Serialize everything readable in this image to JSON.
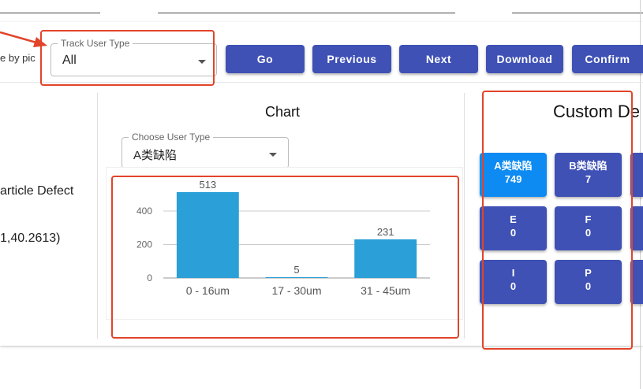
{
  "toolbar": {
    "by_pic_label": "e by pic",
    "track_user_type": {
      "legend": "Track User Type",
      "value": "All"
    },
    "buttons": [
      "Go",
      "Previous",
      "Next",
      "Download",
      "Confirm"
    ]
  },
  "left_panel": {
    "defect_label": "article Defect",
    "coords": "1,40.2613)"
  },
  "chart_panel": {
    "title": "Chart",
    "choose_user_type": {
      "legend": "Choose User Type",
      "value": "A类缺陷"
    }
  },
  "chart_data": {
    "type": "bar",
    "categories": [
      "0 - 16um",
      "17 - 30um",
      "31 - 45um"
    ],
    "values": [
      513,
      5,
      231
    ],
    "ylim": [
      0,
      513
    ],
    "yticks": [
      0,
      200,
      400
    ],
    "grid": true,
    "bar_color": "#2a9fd8"
  },
  "custom_panel": {
    "title": "Custom De",
    "tiles": [
      {
        "label": "A类缺陷",
        "value": "749",
        "color": "#0d8bf2"
      },
      {
        "label": "B类缺陷",
        "value": "7",
        "color": "#3f51b5"
      },
      {
        "label": "E",
        "value": "0",
        "color": "#3f51b5"
      },
      {
        "label": "F",
        "value": "0",
        "color": "#3f51b5"
      },
      {
        "label": "I",
        "value": "0",
        "color": "#3f51b5"
      },
      {
        "label": "P",
        "value": "0",
        "color": "#3f51b5"
      }
    ]
  },
  "colors": {
    "accent": "#3f51b5",
    "highlight": "#e2442a"
  }
}
